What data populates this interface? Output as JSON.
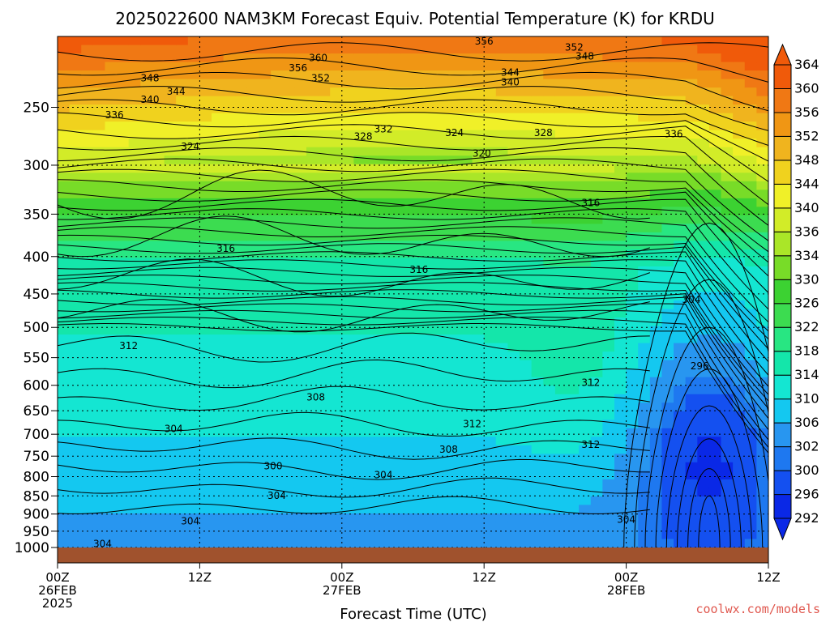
{
  "chart_data": {
    "type": "heatmap",
    "title": "2025022600 NAM3KM Forecast Equiv. Potential Temperature (K) for KRDU",
    "xlabel": "Forecast Time (UTC)",
    "ylabel": "",
    "y_scale": "log",
    "y_inverted": true,
    "ylim": [
      1000,
      200
    ],
    "y_ticks": [
      250,
      300,
      350,
      400,
      450,
      500,
      550,
      600,
      650,
      700,
      750,
      800,
      850,
      900,
      950,
      1000
    ],
    "x_ticks": [
      {
        "hour": 0,
        "lines": [
          "00Z",
          "26FEB",
          "2025"
        ]
      },
      {
        "hour": 12,
        "lines": [
          "12Z"
        ]
      },
      {
        "hour": 24,
        "lines": [
          "00Z",
          "27FEB"
        ]
      },
      {
        "hour": 36,
        "lines": [
          "12Z"
        ]
      },
      {
        "hour": 48,
        "lines": [
          "00Z",
          "28FEB"
        ]
      },
      {
        "hour": 60,
        "lines": [
          "12Z"
        ]
      }
    ],
    "xlim": [
      0,
      60
    ],
    "colorbar": {
      "levels": [
        292,
        296,
        300,
        302,
        306,
        310,
        314,
        318,
        322,
        326,
        330,
        334,
        336,
        340,
        344,
        348,
        352,
        356,
        360,
        364
      ],
      "colors": [
        "#0a28e6",
        "#1450f0",
        "#1e78f0",
        "#2896f0",
        "#14c8f0",
        "#14e6d2",
        "#14e6aa",
        "#28e682",
        "#3cdc50",
        "#3cd232",
        "#78dc28",
        "#aae628",
        "#d2ec28",
        "#f0f028",
        "#f0d21e",
        "#f0b41e",
        "#f09614",
        "#f07814",
        "#f05a0a"
      ]
    },
    "grid": true,
    "ground_color": "#a0522d",
    "contour_labels": [
      {
        "value": "356",
        "hour": 36.0,
        "p": 203
      },
      {
        "value": "352",
        "hour": 43.6,
        "p": 207
      },
      {
        "value": "348",
        "hour": 44.5,
        "p": 213
      },
      {
        "value": "360",
        "hour": 22.0,
        "p": 214
      },
      {
        "value": "356",
        "hour": 20.3,
        "p": 221
      },
      {
        "value": "352",
        "hour": 22.2,
        "p": 228
      },
      {
        "value": "344",
        "hour": 38.2,
        "p": 224
      },
      {
        "value": "340",
        "hour": 38.2,
        "p": 231
      },
      {
        "value": "348",
        "hour": 7.8,
        "p": 228
      },
      {
        "value": "344",
        "hour": 10.0,
        "p": 238
      },
      {
        "value": "340",
        "hour": 7.8,
        "p": 244
      },
      {
        "value": "336",
        "hour": 4.8,
        "p": 256
      },
      {
        "value": "332",
        "hour": 27.5,
        "p": 268
      },
      {
        "value": "328",
        "hour": 25.8,
        "p": 274
      },
      {
        "value": "324",
        "hour": 33.5,
        "p": 271
      },
      {
        "value": "328",
        "hour": 41.0,
        "p": 271
      },
      {
        "value": "336",
        "hour": 52.0,
        "p": 272
      },
      {
        "value": "324",
        "hour": 11.2,
        "p": 283
      },
      {
        "value": "320",
        "hour": 35.8,
        "p": 289
      },
      {
        "value": "316",
        "hour": 45.0,
        "p": 338
      },
      {
        "value": "316",
        "hour": 14.2,
        "p": 390
      },
      {
        "value": "316",
        "hour": 30.5,
        "p": 417
      },
      {
        "value": "304",
        "hour": 53.5,
        "p": 458
      },
      {
        "value": "312",
        "hour": 6.0,
        "p": 530
      },
      {
        "value": "296",
        "hour": 54.2,
        "p": 565
      },
      {
        "value": "312",
        "hour": 45.0,
        "p": 595
      },
      {
        "value": "308",
        "hour": 21.8,
        "p": 623
      },
      {
        "value": "304",
        "hour": 9.8,
        "p": 688
      },
      {
        "value": "312",
        "hour": 35.0,
        "p": 678
      },
      {
        "value": "312",
        "hour": 45.0,
        "p": 723
      },
      {
        "value": "308",
        "hour": 33.0,
        "p": 734
      },
      {
        "value": "300",
        "hour": 18.2,
        "p": 774
      },
      {
        "value": "304",
        "hour": 27.5,
        "p": 796
      },
      {
        "value": "304",
        "hour": 18.5,
        "p": 849
      },
      {
        "value": "304",
        "hour": 11.2,
        "p": 920
      },
      {
        "value": "304",
        "hour": 48.0,
        "p": 916
      },
      {
        "value": "304",
        "hour": 3.8,
        "p": 989
      }
    ]
  },
  "credit": "coolwx.com/models"
}
